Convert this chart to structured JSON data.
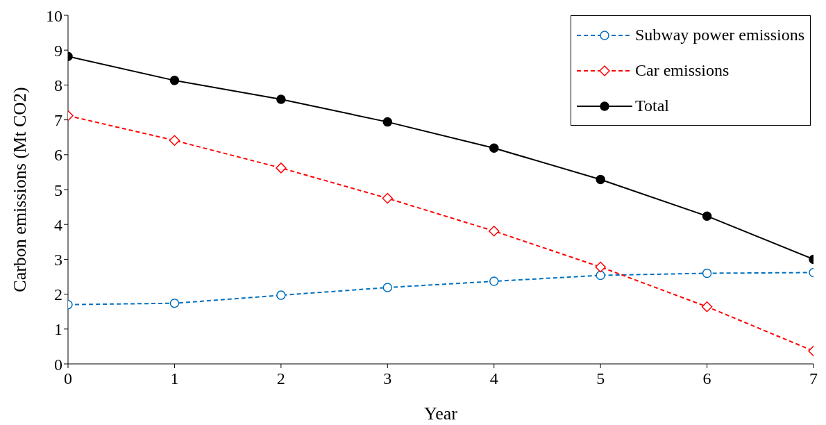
{
  "chart_data": {
    "type": "line",
    "xlabel": "Year",
    "ylabel": "Carbon emissions (Mt CO2)",
    "x": [
      0,
      1,
      2,
      3,
      4,
      5,
      6,
      7
    ],
    "xlim": [
      0,
      7
    ],
    "xticks": [
      0,
      1,
      2,
      3,
      4,
      5,
      6,
      7
    ],
    "ylim": [
      0,
      10
    ],
    "yticks": [
      0,
      1,
      2,
      3,
      4,
      5,
      6,
      7,
      8,
      9,
      10
    ],
    "grid": false,
    "legend": "top right",
    "series": [
      {
        "name": "Subway power emissions",
        "color": "#0070c0",
        "marker": "circle",
        "line_style": "dashed",
        "values": [
          1.7,
          1.74,
          1.97,
          2.19,
          2.37,
          2.54,
          2.6,
          2.62
        ]
      },
      {
        "name": "Car emissions",
        "color": "#ff0000",
        "marker": "diamond",
        "line_style": "dashed",
        "values": [
          7.12,
          6.41,
          5.62,
          4.75,
          3.81,
          2.78,
          1.64,
          0.37
        ]
      },
      {
        "name": "Total",
        "color": "#000000",
        "marker": "circle",
        "line_style": "solid",
        "values": [
          8.82,
          8.13,
          7.59,
          6.94,
          6.19,
          5.29,
          4.24,
          3.0
        ]
      }
    ]
  }
}
